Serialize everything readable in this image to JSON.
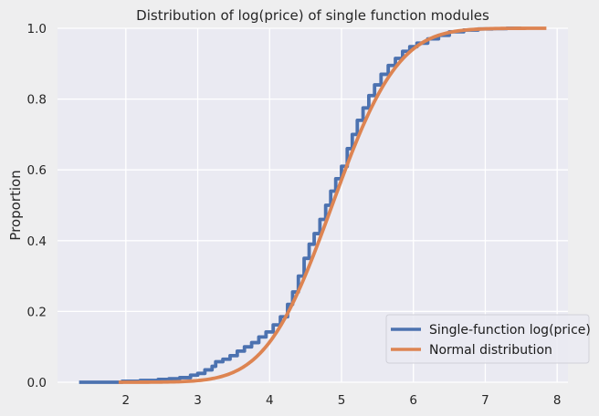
{
  "chart_data": {
    "type": "line",
    "title": "Distribution of log(price) of single function modules",
    "xlabel": "",
    "ylabel": "Proportion",
    "xlim": [
      1.05,
      8.15
    ],
    "ylim": [
      0.0,
      1.0
    ],
    "xticks": [
      2,
      3,
      4,
      5,
      6,
      7,
      8
    ],
    "yticks": [
      0.0,
      0.2,
      0.4,
      0.6,
      0.8,
      1.0
    ],
    "xtick_labels": [
      "2",
      "3",
      "4",
      "5",
      "6",
      "7",
      "8"
    ],
    "ytick_labels": [
      "0.0",
      "0.2",
      "0.4",
      "0.6",
      "0.8",
      "1.0"
    ],
    "grid": true,
    "legend_position": "lower-right",
    "series": [
      {
        "name": "Single-function log(price)",
        "color": "#4c72b0",
        "style": "step",
        "x": [
          1.35,
          1.95,
          2.2,
          2.45,
          2.6,
          2.75,
          2.9,
          3.0,
          3.1,
          3.2,
          3.25,
          3.35,
          3.45,
          3.55,
          3.65,
          3.75,
          3.85,
          3.95,
          4.05,
          4.15,
          4.25,
          4.32,
          4.4,
          4.48,
          4.55,
          4.62,
          4.7,
          4.78,
          4.85,
          4.92,
          5.0,
          5.08,
          5.15,
          5.22,
          5.3,
          5.38,
          5.46,
          5.55,
          5.65,
          5.75,
          5.85,
          5.95,
          6.05,
          6.2,
          6.35,
          6.5,
          6.7,
          6.9,
          7.1,
          7.3,
          7.5
        ],
        "y": [
          0.0,
          0.003,
          0.005,
          0.008,
          0.01,
          0.013,
          0.02,
          0.025,
          0.035,
          0.045,
          0.058,
          0.065,
          0.075,
          0.088,
          0.1,
          0.112,
          0.128,
          0.142,
          0.162,
          0.185,
          0.22,
          0.255,
          0.3,
          0.35,
          0.39,
          0.42,
          0.46,
          0.5,
          0.54,
          0.575,
          0.61,
          0.66,
          0.7,
          0.74,
          0.775,
          0.81,
          0.84,
          0.87,
          0.895,
          0.915,
          0.935,
          0.948,
          0.958,
          0.97,
          0.98,
          0.99,
          0.995,
          0.998,
          0.999,
          1.0,
          1.0
        ]
      },
      {
        "name": "Normal distribution",
        "color": "#dd8452",
        "style": "line",
        "mean": 4.87,
        "sd": 0.72,
        "x_range": [
          1.9,
          7.85
        ]
      }
    ]
  }
}
